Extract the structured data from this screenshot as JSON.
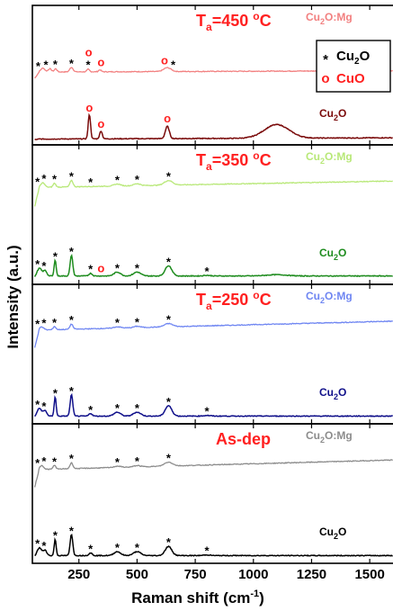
{
  "chart_data": {
    "type": "line",
    "xlabel": "Raman shift (cm",
    "xlabel_sup": "-1",
    "xlabel_end": ")",
    "ylabel": "Intensity (a.u.)",
    "xlim": [
      50,
      1600
    ],
    "xticks": [
      250,
      500,
      750,
      1000,
      1250,
      1500
    ],
    "legend": [
      {
        "symbol": "*",
        "text": "Cu",
        "sub": "2",
        "text2": "O",
        "color": "#000000"
      },
      {
        "symbol": "o",
        "text": "CuO",
        "sub": "",
        "text2": "",
        "color": "#ff2020"
      }
    ],
    "panels": [
      {
        "title_main": "T",
        "title_sub": "a",
        "title_rest": "=450 ",
        "title_sup": "o",
        "title_unit": "C",
        "series": [
          {
            "name": "Cu",
            "name_sub": "2",
            "name_rest": "O:Mg",
            "color": "#f28080",
            "lw": 1.3,
            "baseline": 0.18,
            "slope": 0.02,
            "peaks": [
              [
                95,
                0.06,
                12
              ],
              [
                125,
                0.05,
                10
              ],
              [
                150,
                0.05,
                8
              ],
              [
                218,
                0.07,
                10
              ],
              [
                290,
                0.04,
                8
              ],
              [
                340,
                0.03,
                8
              ],
              [
                630,
                0.06,
                22
              ]
            ],
            "marks": [
              {
                "x": 75,
                "t": "*",
                "c": "#000"
              },
              {
                "x": 108,
                "t": "*",
                "c": "#000"
              },
              {
                "x": 148,
                "t": "*",
                "c": "#000"
              },
              {
                "x": 218,
                "t": "*",
                "c": "#000"
              },
              {
                "x": 290,
                "t": "*",
                "c": "#000"
              },
              {
                "x": 292,
                "t": "o",
                "c": "#ff2020",
                "dy": -10
              },
              {
                "x": 345,
                "t": "o",
                "c": "#ff2020"
              },
              {
                "x": 618,
                "t": "o",
                "c": "#ff2020"
              },
              {
                "x": 655,
                "t": "*",
                "c": "#000"
              }
            ]
          },
          {
            "name": "Cu",
            "name_sub": "2",
            "name_rest": "O",
            "color": "#7a0a0a",
            "lw": 1.5,
            "baseline": 0.02,
            "slope": 0.02,
            "peaks": [
              [
                295,
                0.38,
                7
              ],
              [
                345,
                0.12,
                8
              ],
              [
                630,
                0.19,
                12
              ],
              [
                1100,
                0.21,
                75
              ]
            ],
            "marks": [
              {
                "x": 295,
                "t": "o",
                "c": "#ff2020"
              },
              {
                "x": 345,
                "t": "o",
                "c": "#ff2020"
              },
              {
                "x": 630,
                "t": "o",
                "c": "#ff2020"
              }
            ]
          }
        ]
      },
      {
        "title_main": "T",
        "title_sub": "a",
        "title_rest": "=350 ",
        "title_sup": "o",
        "title_unit": "C",
        "series": [
          {
            "name": "Cu",
            "name_sub": "2",
            "name_rest": "O:Mg",
            "color": "#b8e878",
            "lw": 1.3,
            "baseline": 0.55,
            "slope": 0.1,
            "peaks": [
              [
                95,
                0.07,
                12
              ],
              [
                145,
                0.06,
                8
              ],
              [
                218,
                0.1,
                9
              ],
              [
                415,
                0.03,
                20
              ],
              [
                500,
                0.03,
                20
              ],
              [
                635,
                0.07,
                25
              ]
            ],
            "marks": [
              {
                "x": 72,
                "t": "*",
                "c": "#000"
              },
              {
                "x": 100,
                "t": "*",
                "c": "#000"
              },
              {
                "x": 145,
                "t": "*",
                "c": "#000"
              },
              {
                "x": 218,
                "t": "*",
                "c": "#000"
              },
              {
                "x": 300,
                "t": "*",
                "c": "#000"
              },
              {
                "x": 415,
                "t": "*",
                "c": "#000"
              },
              {
                "x": 500,
                "t": "*",
                "c": "#000"
              },
              {
                "x": 635,
                "t": "*",
                "c": "#000"
              }
            ]
          },
          {
            "name": "Cu",
            "name_sub": "2",
            "name_rest": "O",
            "color": "#1e8c1e",
            "lw": 1.5,
            "baseline": 0.06,
            "slope": 0.0,
            "peaks": [
              [
                80,
                0.12,
                15
              ],
              [
                105,
                0.08,
                10
              ],
              [
                148,
                0.25,
                6
              ],
              [
                218,
                0.32,
                8
              ],
              [
                300,
                0.04,
                10
              ],
              [
                415,
                0.06,
                20
              ],
              [
                500,
                0.06,
                22
              ],
              [
                635,
                0.16,
                20
              ],
              [
                800,
                0.01,
                20
              ],
              [
                1100,
                0.02,
                60
              ]
            ],
            "marks": [
              {
                "x": 72,
                "t": "*",
                "c": "#000"
              },
              {
                "x": 100,
                "t": "*",
                "c": "#000"
              },
              {
                "x": 148,
                "t": "*",
                "c": "#000"
              },
              {
                "x": 218,
                "t": "*",
                "c": "#000"
              },
              {
                "x": 300,
                "t": "*",
                "c": "#000"
              },
              {
                "x": 345,
                "t": "o",
                "c": "#ff2020"
              },
              {
                "x": 415,
                "t": "*",
                "c": "#000"
              },
              {
                "x": 500,
                "t": "*",
                "c": "#000"
              },
              {
                "x": 635,
                "t": "*",
                "c": "#000"
              },
              {
                "x": 800,
                "t": "*",
                "c": "#000"
              }
            ]
          }
        ]
      },
      {
        "title_main": "T",
        "title_sub": "a",
        "title_rest": "=250 ",
        "title_sup": "o",
        "title_unit": "C",
        "series": [
          {
            "name": "Cu",
            "name_sub": "2",
            "name_rest": "O:Mg",
            "color": "#6f86f2",
            "lw": 1.3,
            "baseline": 0.5,
            "slope": 0.14,
            "peaks": [
              [
                90,
                0.05,
                12
              ],
              [
                145,
                0.05,
                8
              ],
              [
                218,
                0.08,
                9
              ],
              [
                415,
                0.02,
                20
              ],
              [
                500,
                0.02,
                20
              ],
              [
                635,
                0.05,
                25
              ]
            ],
            "marks": [
              {
                "x": 72,
                "t": "*",
                "c": "#000"
              },
              {
                "x": 100,
                "t": "*",
                "c": "#000"
              },
              {
                "x": 145,
                "t": "*",
                "c": "#000"
              },
              {
                "x": 218,
                "t": "*",
                "c": "#000"
              },
              {
                "x": 415,
                "t": "*",
                "c": "#000"
              },
              {
                "x": 500,
                "t": "*",
                "c": "#000"
              },
              {
                "x": 635,
                "t": "*",
                "c": "#000"
              }
            ]
          },
          {
            "name": "Cu",
            "name_sub": "2",
            "name_rest": "O",
            "color": "#10108a",
            "lw": 1.5,
            "baseline": 0.05,
            "slope": 0.0,
            "peaks": [
              [
                80,
                0.12,
                15
              ],
              [
                105,
                0.08,
                10
              ],
              [
                148,
                0.3,
                6
              ],
              [
                218,
                0.33,
                8
              ],
              [
                300,
                0.04,
                10
              ],
              [
                415,
                0.06,
                20
              ],
              [
                500,
                0.06,
                22
              ],
              [
                635,
                0.16,
                20
              ],
              [
                800,
                0.01,
                20
              ]
            ],
            "marks": [
              {
                "x": 72,
                "t": "*",
                "c": "#000"
              },
              {
                "x": 100,
                "t": "*",
                "c": "#000"
              },
              {
                "x": 148,
                "t": "*",
                "c": "#000"
              },
              {
                "x": 218,
                "t": "*",
                "c": "#000"
              },
              {
                "x": 300,
                "t": "*",
                "c": "#000"
              },
              {
                "x": 415,
                "t": "*",
                "c": "#000"
              },
              {
                "x": 500,
                "t": "*",
                "c": "#000"
              },
              {
                "x": 635,
                "t": "*",
                "c": "#000"
              },
              {
                "x": 800,
                "t": "*",
                "c": "#000"
              }
            ]
          }
        ]
      },
      {
        "title_main": "As-dep",
        "title_sub": "",
        "title_rest": "",
        "title_sup": "",
        "title_unit": "",
        "series": [
          {
            "name": "Cu",
            "name_sub": "2",
            "name_rest": "O:Mg",
            "color": "#8c8c8c",
            "lw": 1.3,
            "baseline": 0.5,
            "slope": 0.15,
            "peaks": [
              [
                90,
                0.06,
                12
              ],
              [
                145,
                0.06,
                8
              ],
              [
                218,
                0.09,
                9
              ],
              [
                415,
                0.02,
                20
              ],
              [
                500,
                0.02,
                20
              ],
              [
                635,
                0.06,
                25
              ]
            ],
            "marks": [
              {
                "x": 72,
                "t": "*",
                "c": "#000"
              },
              {
                "x": 100,
                "t": "*",
                "c": "#000"
              },
              {
                "x": 145,
                "t": "*",
                "c": "#000"
              },
              {
                "x": 218,
                "t": "*",
                "c": "#000"
              },
              {
                "x": 415,
                "t": "*",
                "c": "#000"
              },
              {
                "x": 500,
                "t": "*",
                "c": "#000"
              },
              {
                "x": 635,
                "t": "*",
                "c": "#000"
              }
            ]
          },
          {
            "name": "Cu",
            "name_sub": "2",
            "name_rest": "O",
            "color": "#000000",
            "lw": 1.5,
            "baseline": 0.05,
            "slope": 0.0,
            "peaks": [
              [
                80,
                0.12,
                15
              ],
              [
                105,
                0.08,
                10
              ],
              [
                148,
                0.25,
                6
              ],
              [
                218,
                0.33,
                8
              ],
              [
                300,
                0.04,
                10
              ],
              [
                415,
                0.06,
                20
              ],
              [
                500,
                0.06,
                22
              ],
              [
                635,
                0.14,
                20
              ],
              [
                800,
                0.01,
                20
              ]
            ],
            "marks": [
              {
                "x": 72,
                "t": "*",
                "c": "#000"
              },
              {
                "x": 100,
                "t": "*",
                "c": "#000"
              },
              {
                "x": 148,
                "t": "*",
                "c": "#000"
              },
              {
                "x": 218,
                "t": "*",
                "c": "#000"
              },
              {
                "x": 300,
                "t": "*",
                "c": "#000"
              },
              {
                "x": 415,
                "t": "*",
                "c": "#000"
              },
              {
                "x": 500,
                "t": "*",
                "c": "#000"
              },
              {
                "x": 635,
                "t": "*",
                "c": "#000"
              },
              {
                "x": 800,
                "t": "*",
                "c": "#000"
              }
            ]
          }
        ]
      }
    ]
  }
}
